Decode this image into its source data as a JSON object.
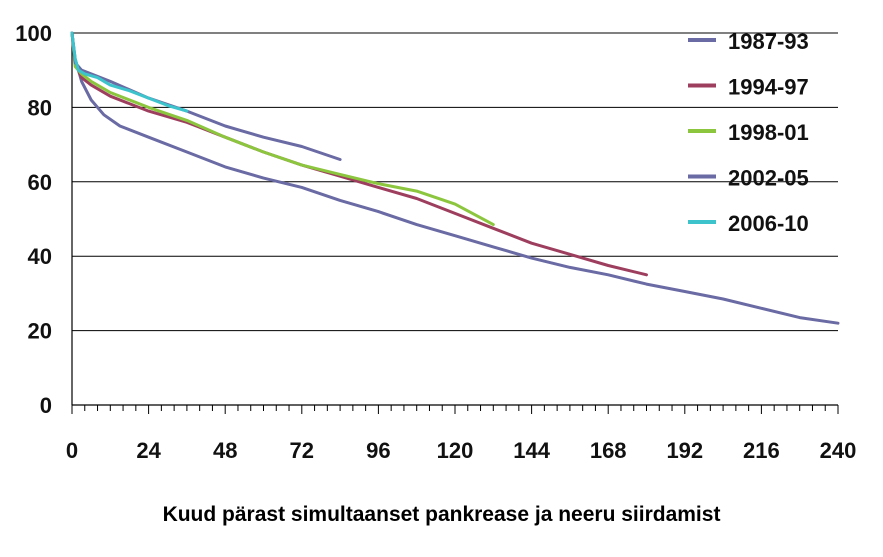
{
  "chart_data": {
    "type": "line",
    "xlabel": "Kuud pärast simultaanset pankrease ja neeru siirdamist",
    "ylabel": "",
    "xlim": [
      0,
      240
    ],
    "ylim": [
      0,
      100
    ],
    "x_ticks": [
      "0",
      "24",
      "48",
      "72",
      "96",
      "120",
      "144",
      "168",
      "192",
      "216",
      "240"
    ],
    "y_ticks": [
      "0",
      "20",
      "40",
      "60",
      "80",
      "100"
    ],
    "grid": "horizontal",
    "legend_position": "right",
    "series": [
      {
        "name": "1987-93",
        "color": "#6a6aa4",
        "points": [
          [
            0,
            100
          ],
          [
            1,
            93
          ],
          [
            3,
            87
          ],
          [
            6,
            82
          ],
          [
            10,
            78
          ],
          [
            15,
            75
          ],
          [
            24,
            72
          ],
          [
            36,
            68
          ],
          [
            48,
            64
          ],
          [
            60,
            61
          ],
          [
            72,
            58.5
          ],
          [
            84,
            55
          ],
          [
            96,
            52
          ],
          [
            108,
            48.5
          ],
          [
            120,
            45.5
          ],
          [
            132,
            42.5
          ],
          [
            144,
            39.5
          ],
          [
            156,
            37
          ],
          [
            168,
            35
          ],
          [
            180,
            32.5
          ],
          [
            192,
            30.5
          ],
          [
            204,
            28.5
          ],
          [
            216,
            26
          ],
          [
            228,
            23.5
          ],
          [
            240,
            22
          ]
        ]
      },
      {
        "name": "1994-97",
        "color": "#9e3e5e",
        "points": [
          [
            0,
            100
          ],
          [
            1,
            92
          ],
          [
            3,
            88
          ],
          [
            6,
            86
          ],
          [
            12,
            83
          ],
          [
            24,
            79
          ],
          [
            36,
            76
          ],
          [
            48,
            72
          ],
          [
            60,
            68
          ],
          [
            72,
            64.5
          ],
          [
            84,
            61.5
          ],
          [
            96,
            58.5
          ],
          [
            108,
            55.5
          ],
          [
            120,
            51.5
          ],
          [
            132,
            47.5
          ],
          [
            144,
            43.5
          ],
          [
            156,
            40.5
          ],
          [
            168,
            37.5
          ],
          [
            180,
            35
          ]
        ]
      },
      {
        "name": "1998-01",
        "color": "#8cc63e",
        "points": [
          [
            0,
            100
          ],
          [
            1,
            91
          ],
          [
            3,
            89
          ],
          [
            6,
            87
          ],
          [
            12,
            84
          ],
          [
            24,
            80
          ],
          [
            36,
            76.5
          ],
          [
            48,
            72
          ],
          [
            60,
            68
          ],
          [
            72,
            64.5
          ],
          [
            84,
            62
          ],
          [
            96,
            59.5
          ],
          [
            108,
            57.5
          ],
          [
            120,
            54
          ],
          [
            132,
            48.5
          ]
        ]
      },
      {
        "name": "2002-05",
        "color": "#6a6aa4",
        "points": [
          [
            0,
            100
          ],
          [
            1,
            92
          ],
          [
            3,
            90
          ],
          [
            6,
            89
          ],
          [
            12,
            87
          ],
          [
            24,
            82.5
          ],
          [
            36,
            79
          ],
          [
            48,
            75
          ],
          [
            60,
            72
          ],
          [
            72,
            69.5
          ],
          [
            84,
            66
          ]
        ]
      },
      {
        "name": "2006-10",
        "color": "#3cc3cc",
        "points": [
          [
            0,
            100
          ],
          [
            1,
            93
          ],
          [
            2,
            90
          ],
          [
            4,
            89
          ],
          [
            8,
            88
          ],
          [
            12,
            86
          ],
          [
            18,
            84.5
          ],
          [
            24,
            82.5
          ],
          [
            30,
            80.5
          ],
          [
            36,
            79
          ]
        ]
      }
    ]
  }
}
